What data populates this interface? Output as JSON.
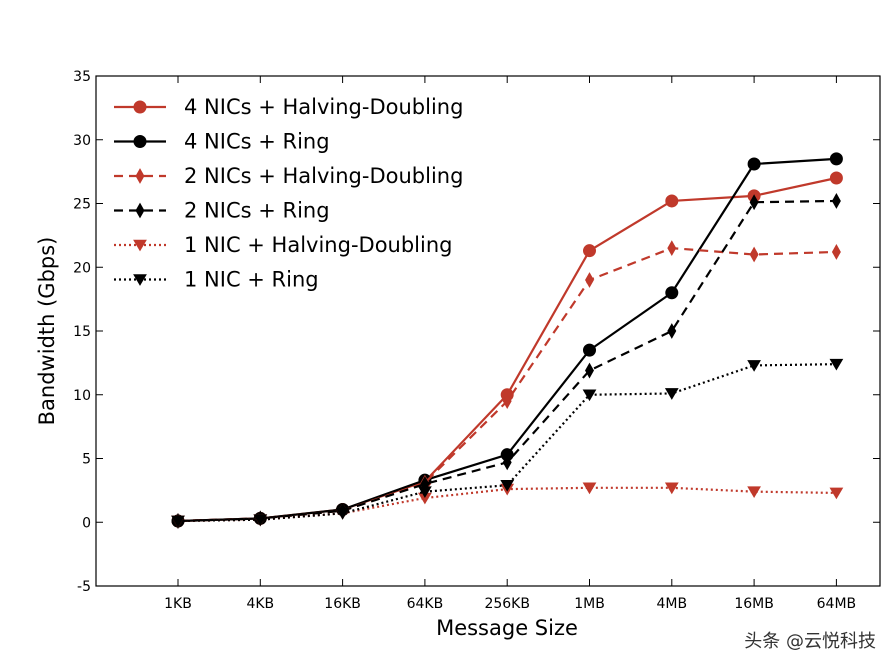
{
  "chart_data": {
    "type": "line",
    "categories": [
      "1KB",
      "4KB",
      "16KB",
      "64KB",
      "256KB",
      "1MB",
      "4MB",
      "16MB",
      "64MB"
    ],
    "xlabel": "Message Size",
    "ylabel": "Bandwidth (Gbps)",
    "ylim": [
      -5,
      35
    ],
    "yticks": [
      -5,
      0,
      5,
      10,
      15,
      20,
      25,
      30,
      35
    ],
    "legend_position": "top-left",
    "grid": false,
    "series": [
      {
        "name": "4 NICs + Halving-Doubling",
        "color": "#c0392b",
        "dash": "solid",
        "marker": "circle",
        "values": [
          0.1,
          0.3,
          1.0,
          3.2,
          10.0,
          21.3,
          25.2,
          25.6,
          27.0
        ]
      },
      {
        "name": "4 NICs + Ring",
        "color": "#000000",
        "dash": "solid",
        "marker": "circle",
        "values": [
          0.1,
          0.3,
          1.0,
          3.3,
          5.3,
          13.5,
          18.0,
          28.1,
          28.5
        ]
      },
      {
        "name": "2 NICs + Halving-Doubling",
        "color": "#c0392b",
        "dash": "dashed",
        "marker": "diamond",
        "values": [
          0.1,
          0.3,
          0.9,
          3.1,
          9.5,
          19.0,
          21.5,
          21.0,
          21.2
        ]
      },
      {
        "name": "2 NICs + Ring",
        "color": "#000000",
        "dash": "dashed",
        "marker": "diamond",
        "values": [
          0.1,
          0.3,
          0.9,
          3.0,
          4.7,
          11.9,
          15.0,
          25.1,
          25.2
        ]
      },
      {
        "name": "1 NIC + Halving-Doubling",
        "color": "#c0392b",
        "dash": "dotted",
        "marker": "triangle-down",
        "values": [
          0.1,
          0.2,
          0.7,
          1.9,
          2.6,
          2.7,
          2.7,
          2.4,
          2.3
        ]
      },
      {
        "name": "1 NIC + Ring",
        "color": "#000000",
        "dash": "dotted",
        "marker": "triangle-down",
        "values": [
          0.1,
          0.2,
          0.7,
          2.4,
          2.9,
          10.0,
          10.1,
          12.3,
          12.4
        ]
      }
    ]
  },
  "watermark": "头条 @云悦科技"
}
